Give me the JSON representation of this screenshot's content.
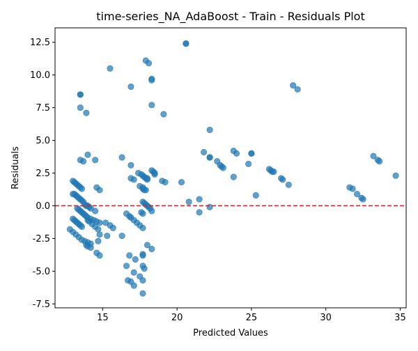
{
  "chart_data": {
    "type": "scatter",
    "title": "time-series_NA_AdaBoost - Train - Residuals Plot",
    "xlabel": "Predicted Values",
    "ylabel": "Residuals",
    "xlim": [
      11.8,
      35.4
    ],
    "ylim": [
      -7.8,
      13.6
    ],
    "xticks": [
      15,
      20,
      25,
      30,
      35
    ],
    "yticks": [
      -7.5,
      -5.0,
      -2.5,
      0.0,
      2.5,
      5.0,
      7.5,
      10.0,
      12.5
    ],
    "grid": false,
    "legend": "none",
    "reference_line": {
      "y": 0,
      "style": "dashed",
      "color": "#d62728"
    },
    "marker_color": "#1f77b4",
    "marker_alpha": 0.7,
    "x": [
      20.6,
      20.6,
      17.9,
      18.1,
      15.5,
      18.3,
      18.3,
      16.9,
      27.8,
      28.1,
      13.5,
      13.5,
      18.3,
      13.5,
      13.9,
      19.1,
      22.2,
      21.8,
      23.8,
      24.0,
      25.0,
      25.0,
      22.2,
      22.2,
      22.7,
      22.9,
      23.0,
      23.1,
      24.8,
      26.2,
      26.3,
      26.4,
      26.5,
      27.0,
      27.1,
      27.5,
      23.8,
      33.2,
      33.5,
      33.6,
      34.7,
      31.6,
      31.8,
      32.1,
      32.4,
      32.5,
      25.3,
      20.8,
      21.5,
      22.2,
      21.5,
      14.0,
      13.5,
      13.7,
      14.5,
      16.3,
      16.9,
      17.4,
      17.6,
      17.7,
      17.8,
      17.9,
      18.0,
      18.0,
      18.3,
      18.4,
      18.5,
      18.5,
      19.0,
      19.2,
      20.3,
      16.9,
      17.1,
      17.5,
      17.7,
      17.7,
      17.8,
      17.9,
      13.0,
      13.1,
      13.2,
      13.3,
      13.4,
      13.5,
      13.6,
      14.6,
      14.8,
      13.0,
      13.1,
      13.2,
      13.3,
      13.4,
      13.5,
      13.6,
      13.7,
      13.8,
      13.9,
      14.0,
      14.1,
      14.2,
      14.5,
      17.7,
      17.8,
      17.9,
      18.0,
      18.1,
      18.2,
      17.6,
      17.7,
      18.3,
      13.3,
      13.4,
      13.5,
      13.6,
      13.7,
      13.8,
      13.9,
      14.0,
      14.2,
      14.4,
      14.6,
      14.8,
      13.0,
      13.1,
      13.2,
      13.3,
      13.4,
      13.5,
      13.6,
      14.0,
      14.1,
      14.3,
      14.5,
      14.7,
      16.6,
      16.8,
      16.9,
      17.1,
      17.3,
      17.5,
      17.7,
      15.2,
      15.5,
      15.7,
      15.3,
      12.8,
      13.0,
      13.2,
      13.4,
      13.6,
      13.8,
      14.0,
      14.2,
      14.8,
      14.7,
      16.3,
      13.9,
      14.0,
      14.2,
      14.6,
      14.8,
      18.0,
      18.3,
      16.8,
      17.2,
      17.7,
      17.7,
      16.6,
      17.7,
      17.8,
      17.1,
      17.5,
      17.7,
      16.7,
      16.9,
      17.1,
      17.7
    ],
    "y": [
      12.4,
      12.4,
      11.1,
      10.9,
      10.5,
      9.7,
      9.6,
      9.1,
      9.2,
      8.9,
      8.5,
      8.5,
      7.7,
      7.5,
      7.1,
      7.0,
      5.8,
      4.1,
      4.2,
      4.0,
      4.0,
      4.0,
      3.7,
      3.7,
      3.4,
      3.1,
      3.0,
      2.9,
      3.2,
      2.8,
      2.7,
      2.6,
      2.6,
      2.1,
      2.0,
      1.6,
      2.2,
      3.8,
      3.5,
      3.4,
      2.3,
      1.4,
      1.3,
      0.9,
      0.6,
      0.5,
      0.8,
      0.3,
      0.5,
      -0.1,
      -0.5,
      3.9,
      3.5,
      3.4,
      3.5,
      3.7,
      3.1,
      2.5,
      2.4,
      2.3,
      2.2,
      2.1,
      2.1,
      2.0,
      2.7,
      2.6,
      2.5,
      2.4,
      1.9,
      1.8,
      1.8,
      2.1,
      2.0,
      1.5,
      1.4,
      1.3,
      1.2,
      1.2,
      1.9,
      1.8,
      1.7,
      1.6,
      1.5,
      1.4,
      1.3,
      1.4,
      1.2,
      0.9,
      0.9,
      0.8,
      0.7,
      0.6,
      0.5,
      0.4,
      0.3,
      0.1,
      0.0,
      0.0,
      -0.1,
      -0.2,
      -0.4,
      0.3,
      0.2,
      0.1,
      0.0,
      -0.1,
      -0.2,
      -0.5,
      -0.6,
      -0.4,
      -0.2,
      -0.3,
      -0.4,
      -0.5,
      -0.6,
      -0.7,
      -0.8,
      -0.9,
      -1.0,
      -1.1,
      -1.2,
      -1.3,
      -1.0,
      -1.1,
      -1.2,
      -1.3,
      -1.4,
      -1.5,
      -1.6,
      -1.1,
      -1.2,
      -1.4,
      -1.6,
      -1.8,
      -0.6,
      -0.8,
      -0.9,
      -1.1,
      -1.3,
      -1.5,
      -1.7,
      -1.3,
      -1.5,
      -1.7,
      -2.3,
      -1.8,
      -2.0,
      -2.2,
      -2.4,
      -2.6,
      -2.7,
      -2.8,
      -2.9,
      -2.2,
      -2.7,
      -2.3,
      -3.0,
      -3.1,
      -3.2,
      -3.6,
      -3.8,
      -3.0,
      -3.3,
      -3.8,
      -4.1,
      -3.7,
      -3.8,
      -4.6,
      -4.6,
      -4.8,
      -5.1,
      -5.4,
      -5.7,
      -5.7,
      -5.8,
      -6.1,
      -6.7
    ]
  }
}
